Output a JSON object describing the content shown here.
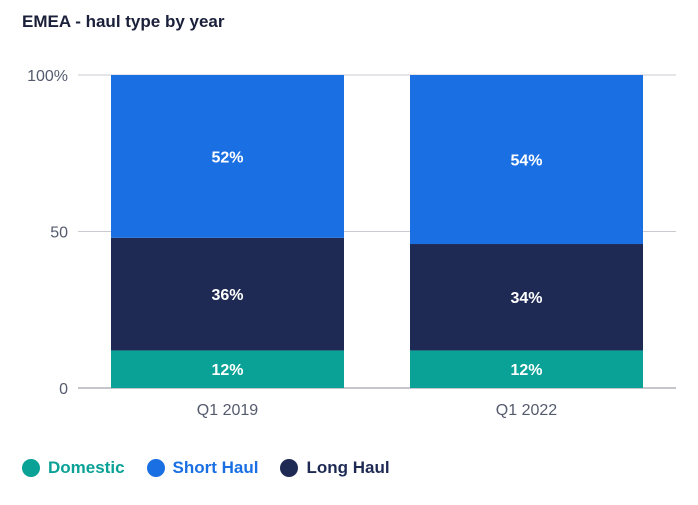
{
  "chart_data": {
    "type": "bar",
    "stacked": true,
    "title": "EMEA - haul type by year",
    "categories": [
      "Q1 2019",
      "Q1 2022"
    ],
    "series": [
      {
        "name": "Domestic",
        "values": [
          12,
          12
        ],
        "labels": [
          "12%",
          "12%"
        ],
        "color": "#0aa196"
      },
      {
        "name": "Long Haul",
        "values": [
          36,
          34
        ],
        "labels": [
          "36%",
          "34%"
        ],
        "color": "#1e2a54"
      },
      {
        "name": "Short Haul",
        "values": [
          52,
          54
        ],
        "labels": [
          "52%",
          "54%"
        ],
        "color": "#1a6fe3"
      }
    ],
    "yticks": [
      "0",
      "50",
      "100%"
    ],
    "ylim": [
      0,
      100
    ],
    "grid": true,
    "legend_position": "bottom-left"
  },
  "legend": [
    {
      "name": "Domestic",
      "color": "#0aa196"
    },
    {
      "name": "Short Haul",
      "color": "#1a6fe3"
    },
    {
      "name": "Long Haul",
      "color": "#1e2a54"
    }
  ]
}
